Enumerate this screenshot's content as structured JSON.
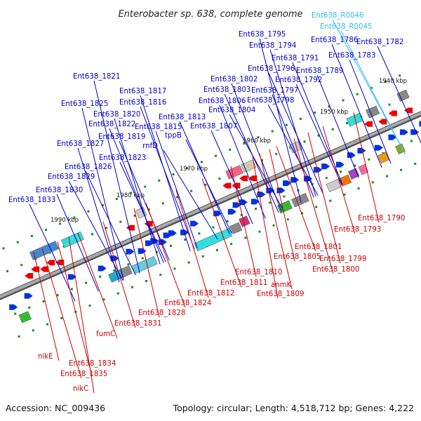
{
  "title": "Enterobacter sp. 638, complete genome",
  "footer": {
    "accession": "Accession: NC_009436",
    "summary": "Topology: circular; Length: 4,518,712 bp; Genes: 4,222"
  },
  "colors": {
    "plus_label": "#0000cc",
    "minus_label": "#cc0000",
    "rna_label": "#33bbee",
    "plus_arrow": "#0033dd",
    "minus_arrow": "#ee0000",
    "backbone": "#888888"
  },
  "scale_ticks": [
    "1940 kbp",
    "1950 kbp",
    "1960 kbp",
    "1970 kbp",
    "1980 kbp",
    "1990 kbp"
  ],
  "plus_labels": [
    "Ent638_1795",
    "Ent638_1794",
    "Ent638_1791",
    "Ent638_1796",
    "Ent638_1789",
    "Ent638_1792",
    "Ent638_1802",
    "Ent638_1803",
    "Ent638_1797",
    "Ent638_1806",
    "Ent638_1798",
    "Ent638_1804",
    "Ent638_1807",
    "Ent638_1821",
    "Ent638_1817",
    "Ent638_1816",
    "Ent638_1825",
    "Ent638_1820",
    "Ent638_1813",
    "Ent638_1822",
    "Ent638_1815",
    "tppB",
    "Ent638_1819",
    "rnfD",
    "Ent638_1827",
    "Ent638_1823",
    "Ent638_1826",
    "Ent638_1829",
    "Ent638_1830",
    "Ent638_1833",
    "Ent638_1786",
    "Ent638_1782",
    "Ent638_1783"
  ],
  "rna_labels": [
    "Ent638_R0046",
    "Ent638_R0045"
  ],
  "minus_labels": [
    "Ent638_1790",
    "Ent638_1793",
    "Ent638_1801",
    "Ent638_1805",
    "Ent638_1799",
    "Ent638_1800",
    "Ent638_1810",
    "anmK",
    "Ent638_1811",
    "Ent638_1809",
    "Ent638_1812",
    "Ent638_1824",
    "Ent638_1828",
    "Ent638_1831",
    "fumC",
    "nikE",
    "Ent638_1834",
    "Ent638_1835",
    "nikC"
  ]
}
